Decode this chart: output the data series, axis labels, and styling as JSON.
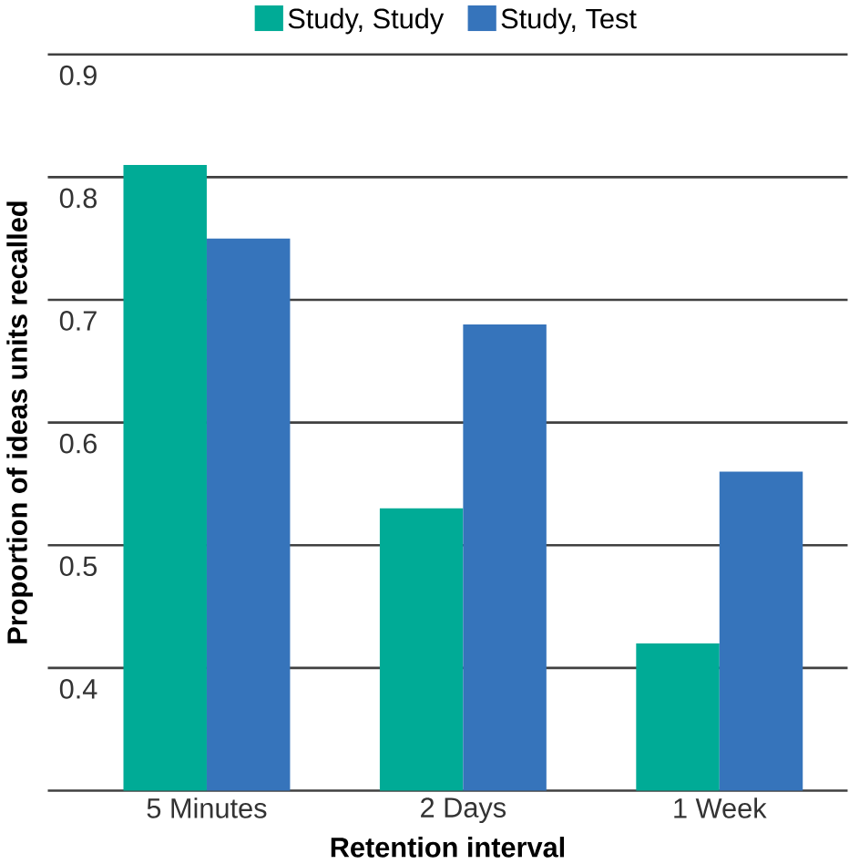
{
  "chart_data": {
    "type": "bar",
    "xlabel": "Retention interval",
    "ylabel": "Proportion of ideas units recalled",
    "categories": [
      "5 Minutes",
      "2 Days",
      "1 Week"
    ],
    "series": [
      {
        "name": "Study, Study",
        "color": "#00ab96",
        "values": [
          0.81,
          0.53,
          0.42
        ]
      },
      {
        "name": "Study, Test",
        "color": "#3674bb",
        "values": [
          0.75,
          0.68,
          0.56
        ]
      }
    ],
    "ylim": [
      0.3,
      0.9
    ],
    "yticks": [
      0.4,
      0.5,
      0.6,
      0.7,
      0.8,
      0.9
    ],
    "grid": "y",
    "legend": "top"
  }
}
